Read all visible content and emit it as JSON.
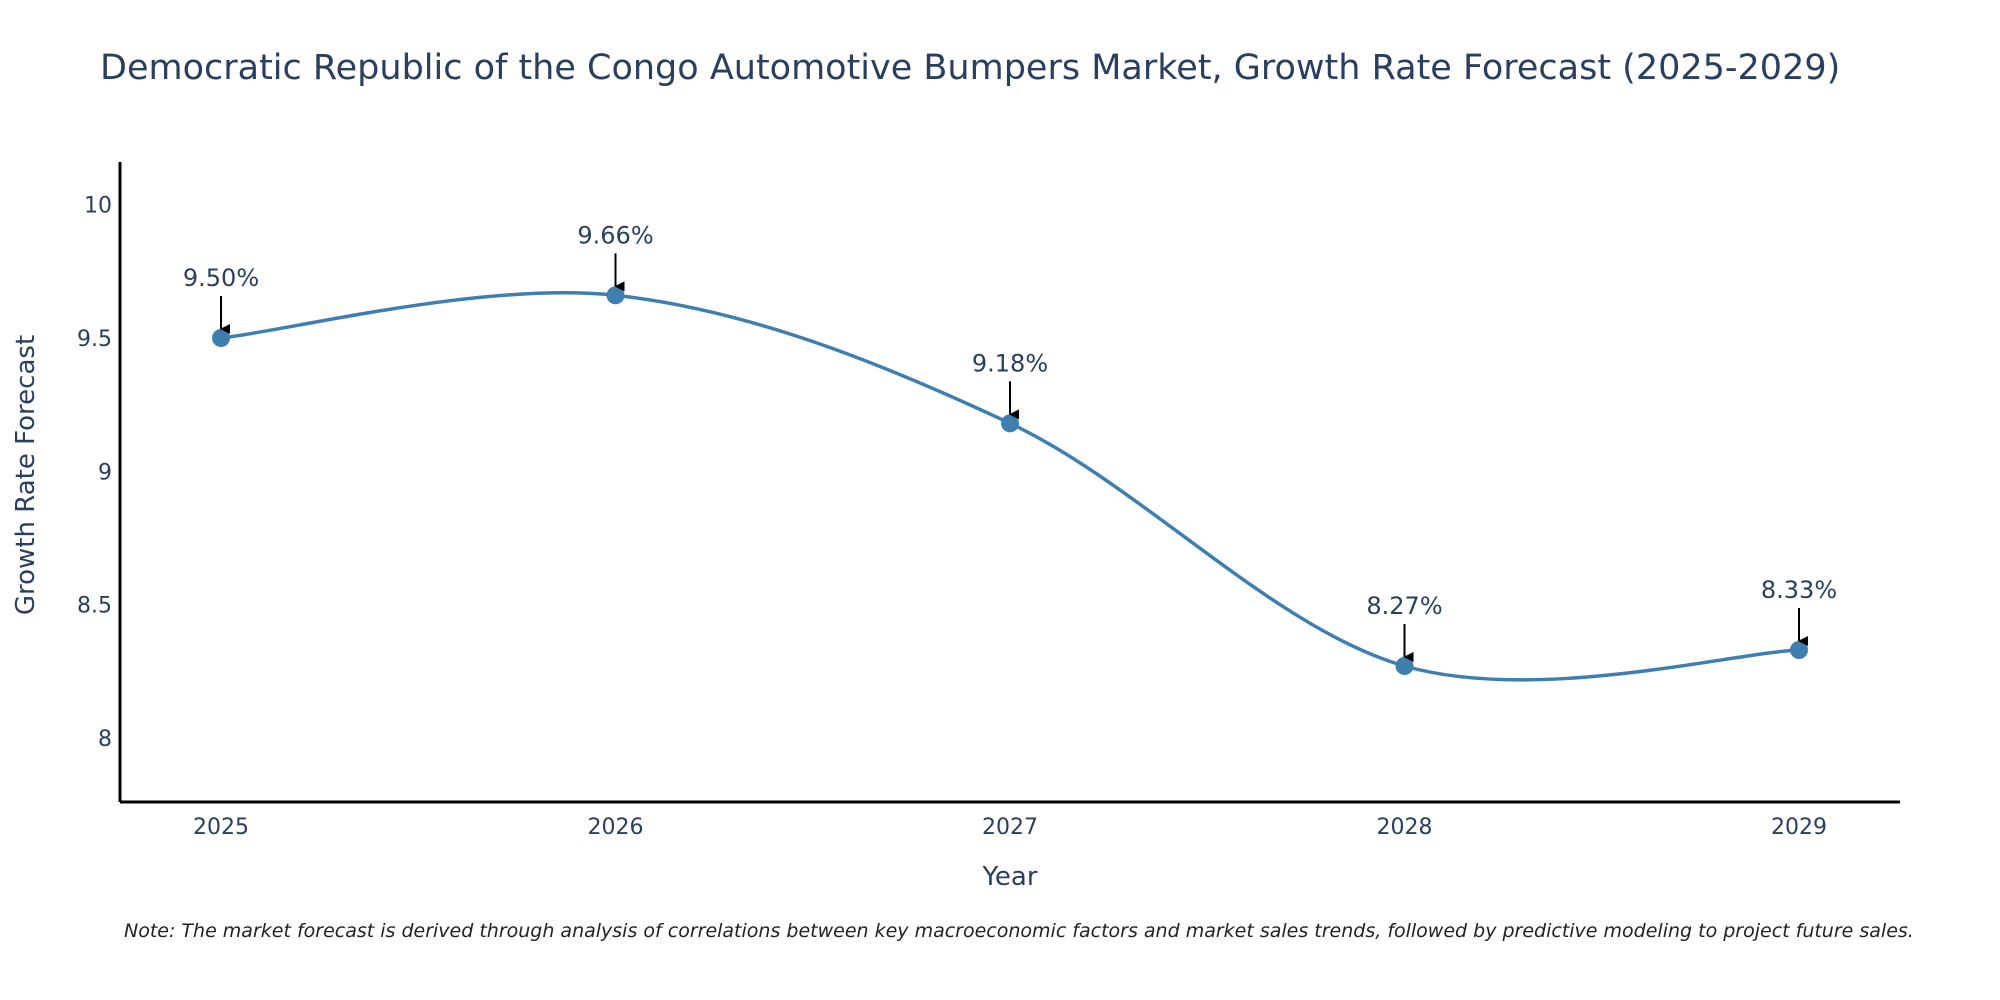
{
  "chart_data": {
    "type": "line",
    "title": "Democratic Republic of the Congo Automotive Bumpers Market, Growth Rate Forecast (2025-2029)",
    "xlabel": "Year",
    "ylabel": "Growth Rate Forecast",
    "categories": [
      "2025",
      "2026",
      "2027",
      "2028",
      "2029"
    ],
    "values": [
      9.5,
      9.66,
      9.18,
      8.27,
      8.33
    ],
    "data_labels": [
      "9.50%",
      "9.66%",
      "9.18%",
      "8.27%",
      "8.33%"
    ],
    "ylim": [
      7.76,
      10.16
    ],
    "yticks": [
      8,
      8.5,
      9,
      9.5,
      10
    ],
    "ytick_labels": [
      "8",
      "8.5",
      "9",
      "9.5",
      "10"
    ],
    "line_shape": "spline",
    "grid": false,
    "note": "Note: The market forecast is derived through analysis of correlations between key macroeconomic factors and market sales trends, followed by predictive modeling to project future sales."
  },
  "colors": {
    "line": "#3f7fb0",
    "marker": "#3f7fb0",
    "axis": "#000000",
    "text": "#2a3f5f",
    "arrow": "#000000"
  }
}
